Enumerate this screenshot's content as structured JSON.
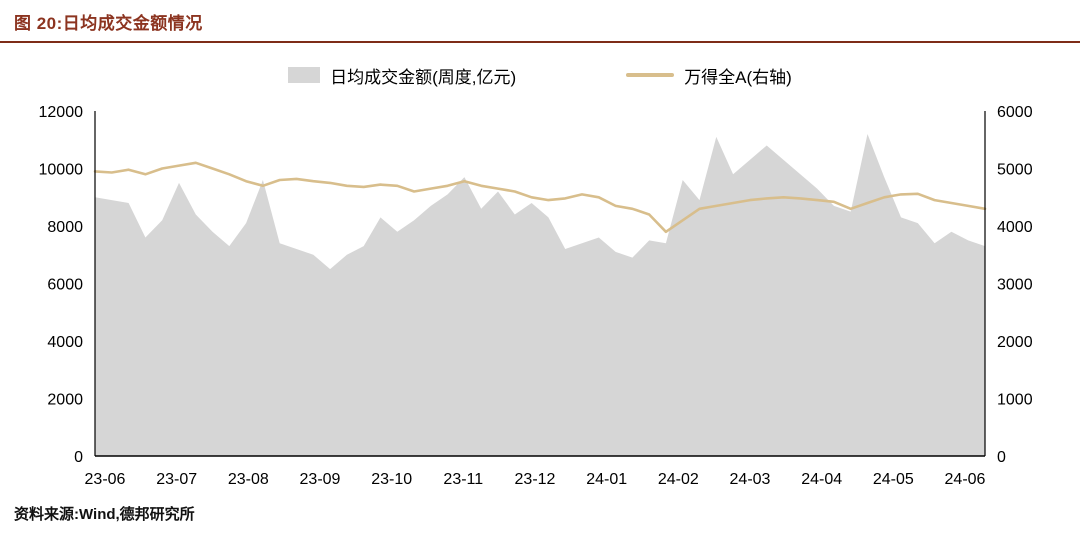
{
  "figure": {
    "title": "图 20:日均成交金额情况",
    "source": "资料来源:Wind,德邦研究所"
  },
  "theme": {
    "title_color": "#8c3420",
    "divider_color": "#7e2c18",
    "axis_color": "#000000",
    "area_color": "#d6d6d6",
    "line_color": "#d8be8c"
  },
  "legend": [
    {
      "label": "日均成交金额(周度,亿元)",
      "type": "area",
      "color": "#d6d6d6"
    },
    {
      "label": "万得全A(右轴)",
      "type": "line",
      "color": "#d8be8c"
    }
  ],
  "chart_data": {
    "type": "area",
    "title": "日均成交金额情况",
    "xlabel": "",
    "ylabel_left": "日均成交金额(周度,亿元)",
    "ylabel_right": "万得全A(右轴)",
    "grid": false,
    "legend_position": "top",
    "x_labels": [
      "23-06",
      "23-07",
      "23-08",
      "23-09",
      "23-10",
      "23-11",
      "23-12",
      "24-01",
      "24-02",
      "24-03",
      "24-04",
      "24-05",
      "24-06"
    ],
    "left_axis": {
      "min": 0,
      "max": 12000,
      "step": 2000
    },
    "right_axis": {
      "min": 0,
      "max": 6000,
      "step": 1000
    },
    "series": [
      {
        "name": "日均成交金额(周度,亿元)",
        "type": "area",
        "axis": "left",
        "color": "#d6d6d6",
        "values": [
          9000,
          8900,
          8800,
          7600,
          8200,
          9500,
          8400,
          7800,
          7300,
          8100,
          9600,
          7400,
          7200,
          7000,
          6500,
          7000,
          7300,
          8300,
          7800,
          8200,
          8700,
          9100,
          9700,
          8600,
          9200,
          8400,
          8800,
          8300,
          7200,
          7400,
          7600,
          7100,
          6900,
          7500,
          7400,
          9600,
          8900,
          11100,
          9800,
          10300,
          10800,
          10300,
          9800,
          9300,
          8700,
          8500,
          11200,
          9700,
          8300,
          8100,
          7400,
          7800,
          7500,
          7300
        ]
      },
      {
        "name": "万得全A(右轴)",
        "type": "line",
        "axis": "right",
        "color": "#d8be8c",
        "values": [
          4950,
          4930,
          4980,
          4900,
          5000,
          5050,
          5100,
          5000,
          4900,
          4780,
          4700,
          4800,
          4820,
          4780,
          4750,
          4700,
          4680,
          4720,
          4700,
          4600,
          4650,
          4700,
          4780,
          4700,
          4650,
          4600,
          4500,
          4450,
          4480,
          4550,
          4500,
          4350,
          4300,
          4200,
          3900,
          4100,
          4300,
          4350,
          4400,
          4450,
          4480,
          4500,
          4480,
          4450,
          4420,
          4300,
          4400,
          4500,
          4550,
          4560,
          4450,
          4400,
          4350,
          4300
        ]
      }
    ]
  }
}
